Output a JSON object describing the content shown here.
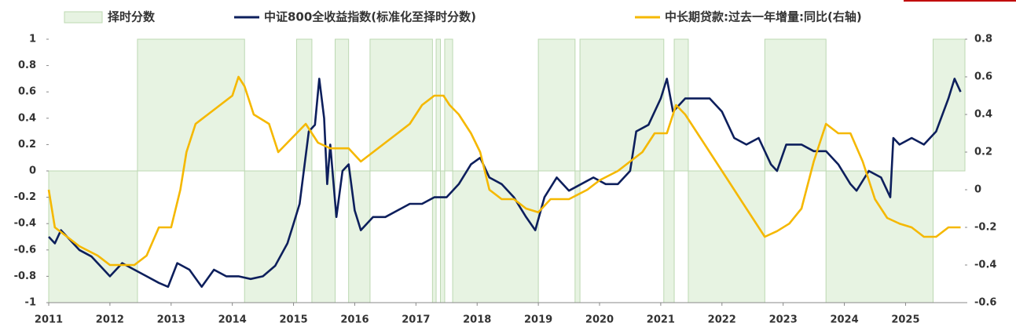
{
  "chart_data": {
    "type": "line",
    "legend": "top",
    "xlim": [
      2011,
      2025.97
    ],
    "xticks": [
      2011,
      2012,
      2013,
      2014,
      2015,
      2016,
      2017,
      2018,
      2019,
      2020,
      2021,
      2022,
      2023,
      2024,
      2025
    ],
    "ylim": [
      -1,
      1
    ],
    "yticks": [
      1,
      0.8,
      0.6,
      0.4,
      0.2,
      0,
      -0.2,
      -0.4,
      -0.6,
      -0.8,
      -1
    ],
    "y2lim": [
      -0.6,
      0.8
    ],
    "y2ticks": [
      0.8,
      0.6,
      0.4,
      0.2,
      0,
      -0.2,
      -0.4,
      -0.6
    ],
    "series": [
      {
        "name": "择时分数",
        "type": "area",
        "color": "#e7f3e2",
        "x": [
          2011,
          2012.45,
          2014.2,
          2015.05,
          2015.3,
          2015.68,
          2015.9,
          2016.25,
          2017.27,
          2017.33,
          2017.4,
          2017.47,
          2017.6,
          2019.0,
          2019.6,
          2019.68,
          2021.05,
          2021.22,
          2021.45,
          2022.7,
          2023.7,
          2025.45
        ],
        "values": [
          -1,
          1,
          -1,
          1,
          -1,
          1,
          -1,
          1,
          -1,
          1,
          -1,
          1,
          -1,
          1,
          -1,
          1,
          -1,
          1,
          -1,
          1,
          -1,
          1
        ]
      },
      {
        "name": "中证800全收益指数(标准化至择时分数)",
        "type": "line",
        "color": "#0d1f5c",
        "x": [
          2011.0,
          2011.1,
          2011.2,
          2011.3,
          2011.5,
          2011.7,
          2011.9,
          2012.0,
          2012.2,
          2012.4,
          2012.6,
          2012.8,
          2012.95,
          2013.1,
          2013.3,
          2013.5,
          2013.7,
          2013.9,
          2014.1,
          2014.3,
          2014.5,
          2014.7,
          2014.9,
          2015.0,
          2015.1,
          2015.25,
          2015.35,
          2015.42,
          2015.5,
          2015.55,
          2015.6,
          2015.7,
          2015.8,
          2015.9,
          2016.0,
          2016.1,
          2016.3,
          2016.5,
          2016.7,
          2016.9,
          2017.1,
          2017.3,
          2017.5,
          2017.7,
          2017.9,
          2018.05,
          2018.2,
          2018.4,
          2018.6,
          2018.8,
          2018.95,
          2019.1,
          2019.3,
          2019.5,
          2019.7,
          2019.9,
          2020.1,
          2020.3,
          2020.5,
          2020.6,
          2020.8,
          2021.0,
          2021.1,
          2021.2,
          2021.4,
          2021.6,
          2021.8,
          2022.0,
          2022.2,
          2022.4,
          2022.6,
          2022.8,
          2022.9,
          2023.05,
          2023.3,
          2023.5,
          2023.7,
          2023.9,
          2024.1,
          2024.2,
          2024.4,
          2024.6,
          2024.75,
          2024.8,
          2024.9,
          2025.1,
          2025.3,
          2025.5,
          2025.7,
          2025.8,
          2025.9
        ],
        "values": [
          -0.5,
          -0.55,
          -0.45,
          -0.5,
          -0.6,
          -0.65,
          -0.75,
          -0.8,
          -0.7,
          -0.75,
          -0.8,
          -0.85,
          -0.88,
          -0.7,
          -0.75,
          -0.88,
          -0.75,
          -0.8,
          -0.8,
          -0.82,
          -0.8,
          -0.72,
          -0.55,
          -0.4,
          -0.25,
          0.3,
          0.35,
          0.7,
          0.4,
          -0.1,
          0.2,
          -0.35,
          0.0,
          0.05,
          -0.3,
          -0.45,
          -0.35,
          -0.35,
          -0.3,
          -0.25,
          -0.25,
          -0.2,
          -0.2,
          -0.1,
          0.05,
          0.1,
          -0.05,
          -0.1,
          -0.2,
          -0.35,
          -0.45,
          -0.2,
          -0.05,
          -0.15,
          -0.1,
          -0.05,
          -0.1,
          -0.1,
          0.0,
          0.3,
          0.35,
          0.55,
          0.7,
          0.45,
          0.55,
          0.55,
          0.55,
          0.45,
          0.25,
          0.2,
          0.25,
          0.05,
          0.0,
          0.2,
          0.2,
          0.15,
          0.15,
          0.05,
          -0.1,
          -0.15,
          0.0,
          -0.05,
          -0.2,
          0.25,
          0.2,
          0.25,
          0.2,
          0.3,
          0.55,
          0.7,
          0.6
        ]
      },
      {
        "name": "中长期贷款:过去一年增量:同比(右轴)",
        "type": "line",
        "axis": "y2",
        "color": "#f5b800",
        "x": [
          2011.0,
          2011.1,
          2011.3,
          2011.5,
          2011.8,
          2012.0,
          2012.4,
          2012.6,
          2012.8,
          2013.0,
          2013.15,
          2013.25,
          2013.4,
          2013.6,
          2013.8,
          2014.0,
          2014.1,
          2014.2,
          2014.35,
          2014.6,
          2014.75,
          2014.9,
          2015.2,
          2015.4,
          2015.6,
          2015.9,
          2016.1,
          2016.3,
          2016.5,
          2016.7,
          2016.9,
          2017.1,
          2017.3,
          2017.45,
          2017.55,
          2017.7,
          2017.9,
          2018.05,
          2018.2,
          2018.4,
          2018.6,
          2018.8,
          2019.0,
          2019.2,
          2019.5,
          2019.8,
          2020.0,
          2020.3,
          2020.5,
          2020.7,
          2020.9,
          2021.1,
          2021.25,
          2021.4,
          2021.6,
          2021.8,
          2022.1,
          2022.3,
          2022.5,
          2022.7,
          2022.9,
          2023.1,
          2023.3,
          2023.5,
          2023.7,
          2023.9,
          2024.1,
          2024.3,
          2024.5,
          2024.7,
          2024.9,
          2025.1,
          2025.3,
          2025.5,
          2025.7,
          2025.9
        ],
        "values": [
          0.0,
          -0.2,
          -0.25,
          -0.3,
          -0.35,
          -0.4,
          -0.4,
          -0.35,
          -0.2,
          -0.2,
          0.0,
          0.2,
          0.35,
          0.4,
          0.45,
          0.5,
          0.6,
          0.55,
          0.4,
          0.35,
          0.2,
          0.25,
          0.35,
          0.25,
          0.22,
          0.22,
          0.15,
          0.2,
          0.25,
          0.3,
          0.35,
          0.45,
          0.5,
          0.5,
          0.45,
          0.4,
          0.3,
          0.2,
          0.0,
          -0.05,
          -0.05,
          -0.1,
          -0.12,
          -0.05,
          -0.05,
          0.0,
          0.05,
          0.1,
          0.15,
          0.2,
          0.3,
          0.3,
          0.45,
          0.4,
          0.3,
          0.2,
          0.05,
          -0.05,
          -0.15,
          -0.25,
          -0.22,
          -0.18,
          -0.1,
          0.15,
          0.35,
          0.3,
          0.3,
          0.15,
          -0.05,
          -0.15,
          -0.18,
          -0.2,
          -0.25,
          -0.25,
          -0.2,
          -0.2
        ]
      }
    ]
  }
}
